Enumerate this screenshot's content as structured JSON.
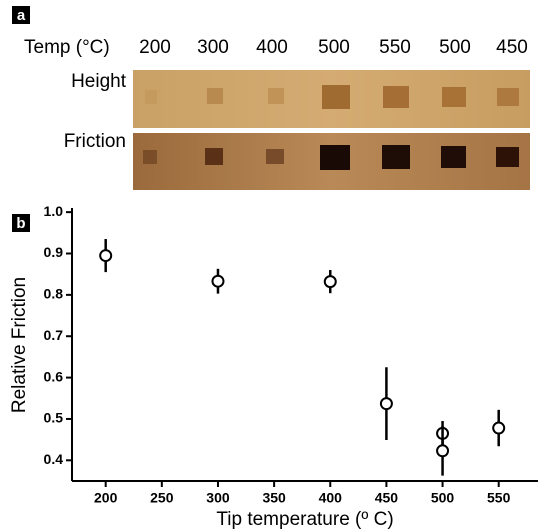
{
  "panel_a": {
    "label": "a",
    "temp_label": "Temp (°C)",
    "temps": [
      "200",
      "300",
      "400",
      "500",
      "550",
      "500",
      "450"
    ],
    "row_labels": [
      "Height",
      "Friction"
    ]
  },
  "chart_data": {
    "type": "scatter",
    "panel_label": "b",
    "x_label": "Tip temperature (º C)",
    "y_label": "Relative Friction",
    "x": [
      200,
      300,
      400,
      450,
      500,
      500,
      550
    ],
    "series": [
      {
        "values": [
          0.895,
          0.833,
          0.832,
          0.537,
          0.465,
          0.423,
          0.478
        ],
        "errors": [
          0.04,
          0.03,
          0.028,
          0.088,
          0.03,
          0.06,
          0.044
        ],
        "color": "#000000"
      }
    ],
    "xlim": [
      170,
      585
    ],
    "ylim": [
      0.35,
      1.01
    ],
    "xticks": [
      200,
      250,
      300,
      350,
      400,
      450,
      500,
      550
    ],
    "yticks": [
      {
        "value": 1.0,
        "label": "1.0"
      },
      0.9,
      0.8,
      0.7,
      0.6,
      0.5,
      0.4
    ]
  }
}
